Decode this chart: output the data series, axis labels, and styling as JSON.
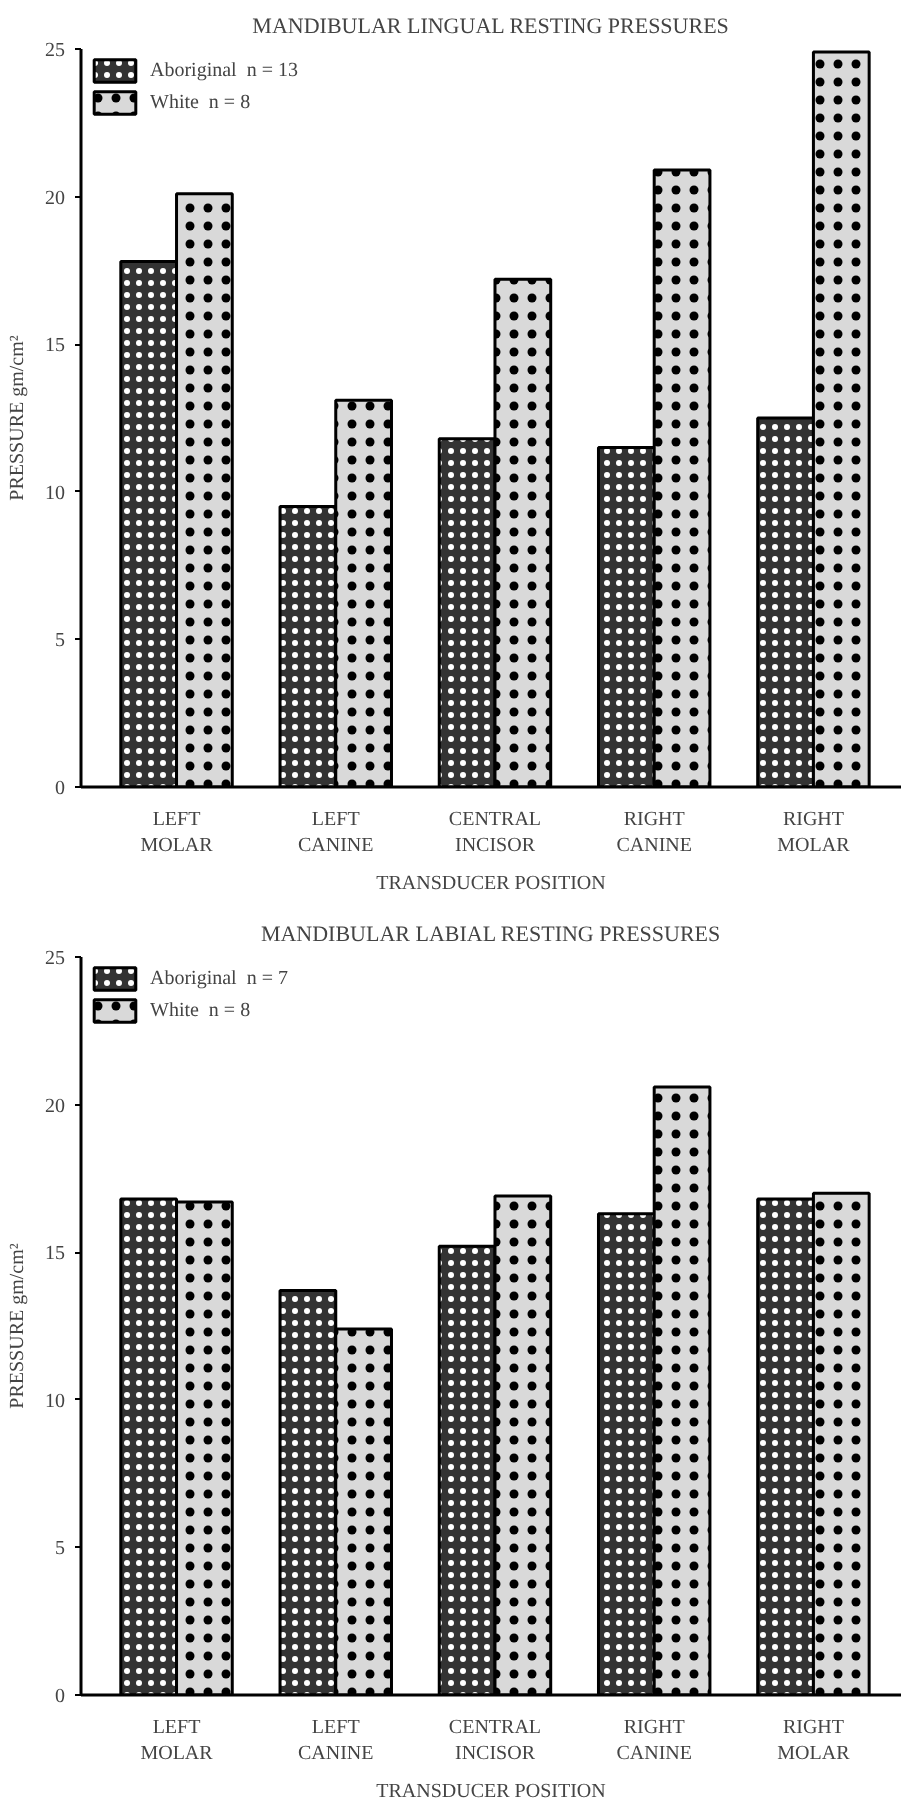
{
  "chart_data": [
    {
      "type": "bar",
      "title": "MANDIBULAR LINGUAL RESTING PRESSURES",
      "xlabel": "TRANSDUCER POSITION",
      "ylabel": "PRESSURE gm/cm²",
      "categories": [
        "LEFT\nMOLAR",
        "LEFT\nCANINE",
        "CENTRAL\nINCISOR",
        "RIGHT\nCANINE",
        "RIGHT\nMOLAR"
      ],
      "series": [
        {
          "name": "Aboriginal  n = 13",
          "color": "#333333",
          "values": [
            17.8,
            9.5,
            11.8,
            11.5,
            12.5
          ]
        },
        {
          "name": "White  n = 8",
          "color": "#d9d9d9",
          "values": [
            20.1,
            13.1,
            17.2,
            20.9,
            24.9
          ]
        }
      ],
      "ylim": [
        0,
        25
      ],
      "yticks": [
        0,
        5,
        10,
        15,
        20,
        25
      ],
      "grid": false,
      "legend": "top left"
    },
    {
      "type": "bar",
      "title": "MANDIBULAR LABIAL RESTING PRESSURES",
      "xlabel": "TRANSDUCER POSITION",
      "ylabel": "PRESSURE gm/cm²",
      "categories": [
        "LEFT\nMOLAR",
        "LEFT\nCANINE",
        "CENTRAL\nINCISOR",
        "RIGHT\nCANINE",
        "RIGHT\nMOLAR"
      ],
      "series": [
        {
          "name": "Aboriginal  n = 7",
          "color": "#333333",
          "values": [
            16.8,
            13.7,
            15.2,
            16.3,
            16.8
          ]
        },
        {
          "name": "White  n = 8",
          "color": "#d9d9d9",
          "values": [
            16.7,
            12.4,
            16.9,
            20.6,
            17.0
          ]
        }
      ],
      "ylim": [
        0,
        25
      ],
      "yticks": [
        0,
        5,
        10,
        15,
        20,
        25
      ],
      "grid": false,
      "legend": "top left"
    }
  ]
}
